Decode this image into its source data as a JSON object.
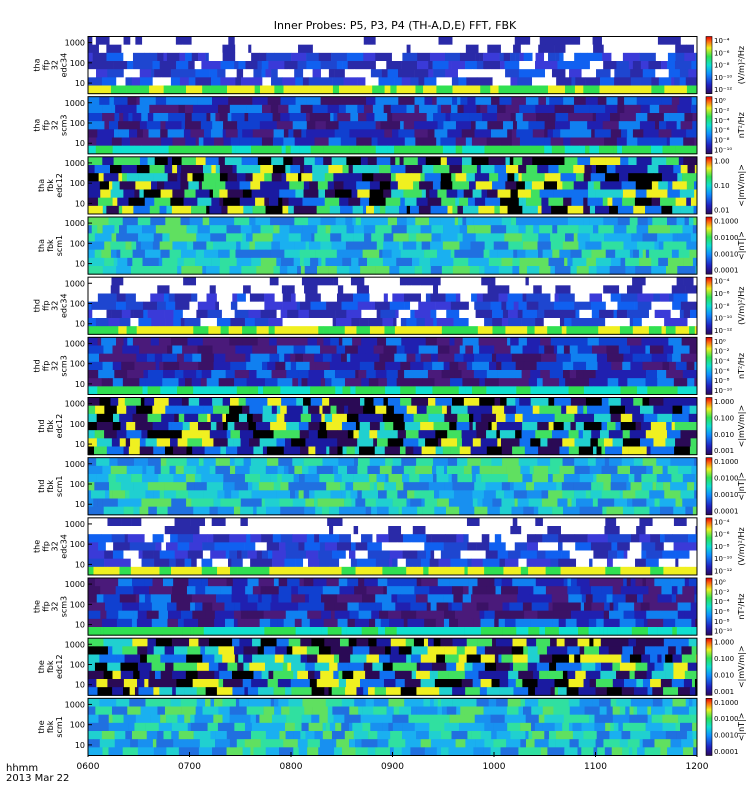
{
  "title": "Inner Probes: P5, P3, P4 (TH-A,D,E) FFT, FBK",
  "footer": {
    "line1": "hhmm",
    "line2": "2013 Mar 22"
  },
  "chart_data": {
    "type": "heatmap",
    "title": "Inner Probes: P5, P3, P4 (TH-A,D,E) FFT, FBK",
    "x": {
      "label": "hhmm",
      "date": "2013 Mar 22",
      "range": [
        "0600",
        "1200"
      ],
      "ticks": [
        "0600",
        "0700",
        "0800",
        "0900",
        "1000",
        "1100",
        "1200"
      ]
    },
    "colormap": "rainbow (purple-blue-cyan-green-yellow-red)",
    "panels": [
      {
        "ylabel": [
          "tha",
          "ffp",
          "32",
          "edc34"
        ],
        "yticks": [
          "1000",
          "100",
          "10"
        ],
        "ylog": true,
        "cbar_unit": "(V/m)²/Hz",
        "cbar_ticks": [
          "10⁻⁴",
          "10⁻⁶",
          "10⁻⁸",
          "10⁻¹⁰",
          "10⁻¹²"
        ]
      },
      {
        "ylabel": [
          "tha",
          "ffp",
          "32",
          "scm3"
        ],
        "yticks": [
          "1000",
          "100",
          "10"
        ],
        "ylog": true,
        "cbar_unit": "nT²/Hz",
        "cbar_ticks": [
          "10⁰",
          "10⁻²",
          "10⁻⁴",
          "10⁻⁶",
          "10⁻⁸",
          "10⁻¹⁰"
        ]
      },
      {
        "ylabel": [
          "tha",
          "fbk",
          "edc12"
        ],
        "yticks": [
          "1000",
          "100",
          "10"
        ],
        "ylog": true,
        "cbar_unit": "<|mV/m|>",
        "cbar_ticks": [
          "1.00",
          "0.10",
          "0.01"
        ]
      },
      {
        "ylabel": [
          "tha",
          "fbk",
          "scm1"
        ],
        "yticks": [
          "1000",
          "100",
          "10"
        ],
        "ylog": true,
        "cbar_unit": "<|nT|>",
        "cbar_ticks": [
          "0.1000",
          "0.0100",
          "0.0010",
          "0.0001"
        ]
      },
      {
        "ylabel": [
          "thd",
          "ffp",
          "32",
          "edc34"
        ],
        "yticks": [
          "1000",
          "100",
          "10"
        ],
        "ylog": true,
        "cbar_unit": "(V/m)²/Hz",
        "cbar_ticks": [
          "10⁻⁴",
          "10⁻⁶",
          "10⁻⁸",
          "10⁻¹⁰",
          "10⁻¹²"
        ]
      },
      {
        "ylabel": [
          "thd",
          "ffp",
          "32",
          "scm3"
        ],
        "yticks": [
          "1000",
          "100",
          "10"
        ],
        "ylog": true,
        "cbar_unit": "nT²/Hz",
        "cbar_ticks": [
          "10⁰",
          "10⁻²",
          "10⁻⁴",
          "10⁻⁶",
          "10⁻⁸",
          "10⁻¹⁰"
        ]
      },
      {
        "ylabel": [
          "thd",
          "fbk",
          "edc12"
        ],
        "yticks": [
          "1000",
          "100",
          "10"
        ],
        "ylog": true,
        "cbar_unit": "<|mV/m|>",
        "cbar_ticks": [
          "1.000",
          "0.100",
          "0.010",
          "0.001"
        ]
      },
      {
        "ylabel": [
          "thd",
          "fbk",
          "scm1"
        ],
        "yticks": [
          "1000",
          "100",
          "10"
        ],
        "ylog": true,
        "cbar_unit": "<|nT|>",
        "cbar_ticks": [
          "0.1000",
          "0.0100",
          "0.0010",
          "0.0001"
        ]
      },
      {
        "ylabel": [
          "the",
          "ffp",
          "32",
          "edc34"
        ],
        "yticks": [
          "1000",
          "100",
          "10"
        ],
        "ylog": true,
        "cbar_unit": "(V/m)²/Hz",
        "cbar_ticks": [
          "10⁻⁴",
          "10⁻⁶",
          "10⁻⁸",
          "10⁻¹⁰",
          "10⁻¹²"
        ]
      },
      {
        "ylabel": [
          "the",
          "ffp",
          "32",
          "scm3"
        ],
        "yticks": [
          "1000",
          "100",
          "10"
        ],
        "ylog": true,
        "cbar_unit": "nT²/Hz",
        "cbar_ticks": [
          "10⁰",
          "10⁻²",
          "10⁻⁴",
          "10⁻⁶",
          "10⁻⁸",
          "10⁻¹⁰"
        ]
      },
      {
        "ylabel": [
          "the",
          "fbk",
          "edc12"
        ],
        "yticks": [
          "1000",
          "100",
          "10"
        ],
        "ylog": true,
        "cbar_unit": "<|mV/m|>",
        "cbar_ticks": [
          "1.000",
          "0.100",
          "0.010",
          "0.001"
        ]
      },
      {
        "ylabel": [
          "the",
          "fbk",
          "scm1"
        ],
        "yticks": [
          "1000",
          "100",
          "10"
        ],
        "ylog": true,
        "cbar_unit": "<|nT|>",
        "cbar_ticks": [
          "0.1000",
          "0.0100",
          "0.0010",
          "0.0001"
        ]
      }
    ]
  }
}
